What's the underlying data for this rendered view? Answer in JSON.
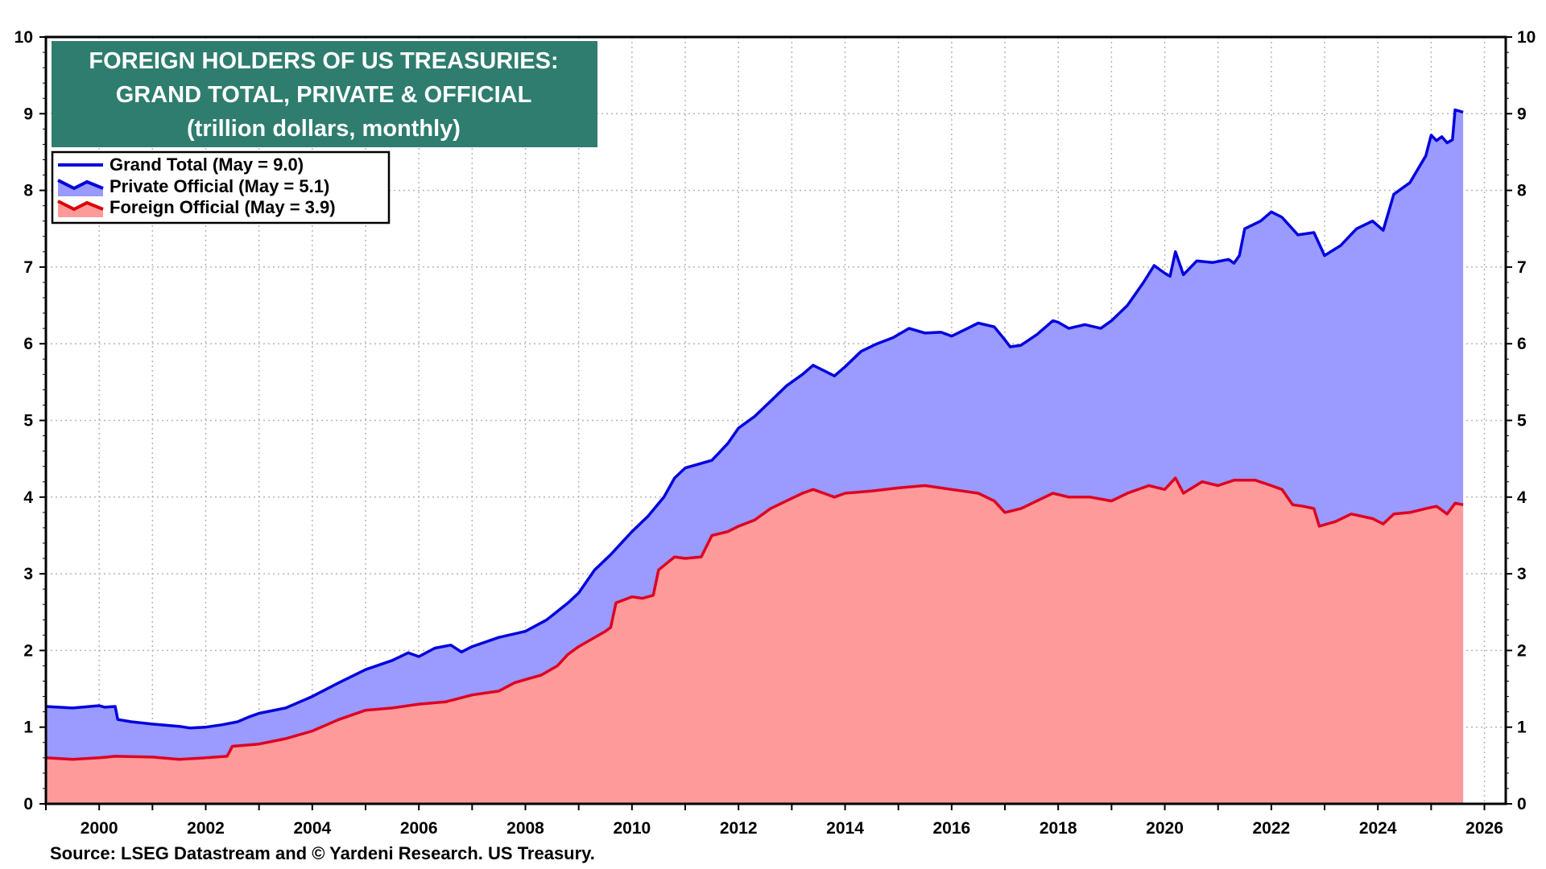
{
  "chart_data": {
    "type": "area",
    "title_lines": [
      "FOREIGN HOLDERS OF US TREASURIES:",
      "GRAND TOTAL, PRIVATE & OFFICIAL",
      "(trillion dollars, monthly)"
    ],
    "source": "Source: LSEG Datastream and © Yardeni Research. US Treasury.",
    "x_ticks": [
      "2000",
      "2002",
      "2004",
      "2006",
      "2008",
      "2010",
      "2012",
      "2014",
      "2016",
      "2018",
      "2020",
      "2022",
      "2024",
      "2026"
    ],
    "y_ticks": [
      "0",
      "1",
      "2",
      "3",
      "4",
      "5",
      "6",
      "7",
      "8",
      "9",
      "10"
    ],
    "xlim": [
      1999.0,
      2026.4
    ],
    "ylim": [
      0,
      10
    ],
    "grid": true,
    "legend_position": "top-left",
    "legend": [
      {
        "label": "Grand Total (May = 9.0)",
        "style": "line",
        "color": "#0000dd"
      },
      {
        "label": "Private Official (May = 5.1)",
        "style": "area",
        "color": "#9a9aff",
        "edge": "#0000dd"
      },
      {
        "label": "Foreign Official (May = 3.9)",
        "style": "area",
        "color": "#ff9a9a",
        "edge": "#dd0000"
      }
    ],
    "colors": {
      "title_bg": "#2e7d6e",
      "total": "#0000dd",
      "private_fill": "#9a9aff",
      "official_line": "#dd0022",
      "official_fill": "#ff9a9a"
    },
    "series": [
      {
        "name": "Grand Total (May = 9.0)",
        "points": [
          [
            1999.0,
            1.27
          ],
          [
            1999.5,
            1.25
          ],
          [
            2000.0,
            1.28
          ],
          [
            2000.1,
            1.26
          ],
          [
            2000.3,
            1.27
          ],
          [
            2000.35,
            1.1
          ],
          [
            2000.6,
            1.07
          ],
          [
            2001.0,
            1.04
          ],
          [
            2001.5,
            1.01
          ],
          [
            2001.7,
            0.99
          ],
          [
            2002.0,
            1.0
          ],
          [
            2002.3,
            1.03
          ],
          [
            2002.6,
            1.07
          ],
          [
            2002.8,
            1.13
          ],
          [
            2003.0,
            1.18
          ],
          [
            2003.5,
            1.25
          ],
          [
            2004.0,
            1.4
          ],
          [
            2004.5,
            1.58
          ],
          [
            2005.0,
            1.75
          ],
          [
            2005.5,
            1.87
          ],
          [
            2005.8,
            1.97
          ],
          [
            2006.0,
            1.92
          ],
          [
            2006.3,
            2.03
          ],
          [
            2006.6,
            2.07
          ],
          [
            2006.8,
            1.98
          ],
          [
            2007.0,
            2.05
          ],
          [
            2007.5,
            2.17
          ],
          [
            2008.0,
            2.25
          ],
          [
            2008.4,
            2.4
          ],
          [
            2008.8,
            2.62
          ],
          [
            2009.0,
            2.75
          ],
          [
            2009.3,
            3.05
          ],
          [
            2009.6,
            3.25
          ],
          [
            2010.0,
            3.55
          ],
          [
            2010.3,
            3.75
          ],
          [
            2010.6,
            4.0
          ],
          [
            2010.8,
            4.25
          ],
          [
            2011.0,
            4.38
          ],
          [
            2011.5,
            4.48
          ],
          [
            2011.8,
            4.7
          ],
          [
            2012.0,
            4.9
          ],
          [
            2012.3,
            5.05
          ],
          [
            2012.6,
            5.25
          ],
          [
            2012.9,
            5.45
          ],
          [
            2013.2,
            5.6
          ],
          [
            2013.4,
            5.72
          ],
          [
            2013.6,
            5.65
          ],
          [
            2013.8,
            5.58
          ],
          [
            2014.0,
            5.7
          ],
          [
            2014.3,
            5.9
          ],
          [
            2014.6,
            6.0
          ],
          [
            2014.9,
            6.08
          ],
          [
            2015.2,
            6.2
          ],
          [
            2015.5,
            6.14
          ],
          [
            2015.8,
            6.15
          ],
          [
            2016.0,
            6.1
          ],
          [
            2016.3,
            6.2
          ],
          [
            2016.5,
            6.27
          ],
          [
            2016.8,
            6.22
          ],
          [
            2017.0,
            6.05
          ],
          [
            2017.1,
            5.96
          ],
          [
            2017.3,
            5.98
          ],
          [
            2017.6,
            6.12
          ],
          [
            2017.9,
            6.3
          ],
          [
            2018.0,
            6.28
          ],
          [
            2018.2,
            6.2
          ],
          [
            2018.5,
            6.25
          ],
          [
            2018.8,
            6.2
          ],
          [
            2019.0,
            6.3
          ],
          [
            2019.3,
            6.5
          ],
          [
            2019.6,
            6.8
          ],
          [
            2019.8,
            7.02
          ],
          [
            2020.0,
            6.92
          ],
          [
            2020.1,
            6.88
          ],
          [
            2020.2,
            7.2
          ],
          [
            2020.35,
            6.9
          ],
          [
            2020.6,
            7.08
          ],
          [
            2020.9,
            7.06
          ],
          [
            2021.2,
            7.1
          ],
          [
            2021.3,
            7.05
          ],
          [
            2021.4,
            7.15
          ],
          [
            2021.5,
            7.5
          ],
          [
            2021.8,
            7.6
          ],
          [
            2022.0,
            7.72
          ],
          [
            2022.2,
            7.65
          ],
          [
            2022.5,
            7.42
          ],
          [
            2022.8,
            7.45
          ],
          [
            2023.0,
            7.15
          ],
          [
            2023.3,
            7.28
          ],
          [
            2023.6,
            7.5
          ],
          [
            2023.9,
            7.6
          ],
          [
            2024.1,
            7.48
          ],
          [
            2024.3,
            7.95
          ],
          [
            2024.6,
            8.1
          ],
          [
            2024.9,
            8.45
          ],
          [
            2025.0,
            8.72
          ],
          [
            2025.1,
            8.65
          ],
          [
            2025.2,
            8.7
          ],
          [
            2025.3,
            8.62
          ],
          [
            2025.4,
            8.66
          ],
          [
            2025.45,
            9.05
          ],
          [
            2025.6,
            9.02
          ]
        ]
      },
      {
        "name": "Foreign Official (May = 3.9)",
        "points": [
          [
            1999.0,
            0.6
          ],
          [
            1999.5,
            0.58
          ],
          [
            2000.0,
            0.6
          ],
          [
            2000.3,
            0.62
          ],
          [
            2001.0,
            0.61
          ],
          [
            2001.5,
            0.58
          ],
          [
            2002.0,
            0.6
          ],
          [
            2002.4,
            0.62
          ],
          [
            2002.5,
            0.75
          ],
          [
            2003.0,
            0.78
          ],
          [
            2003.5,
            0.85
          ],
          [
            2004.0,
            0.95
          ],
          [
            2004.5,
            1.1
          ],
          [
            2005.0,
            1.22
          ],
          [
            2005.5,
            1.25
          ],
          [
            2006.0,
            1.3
          ],
          [
            2006.5,
            1.33
          ],
          [
            2007.0,
            1.42
          ],
          [
            2007.5,
            1.47
          ],
          [
            2007.8,
            1.58
          ],
          [
            2008.0,
            1.62
          ],
          [
            2008.3,
            1.68
          ],
          [
            2008.6,
            1.8
          ],
          [
            2008.8,
            1.95
          ],
          [
            2009.0,
            2.05
          ],
          [
            2009.5,
            2.25
          ],
          [
            2009.6,
            2.3
          ],
          [
            2009.7,
            2.62
          ],
          [
            2010.0,
            2.7
          ],
          [
            2010.2,
            2.68
          ],
          [
            2010.4,
            2.72
          ],
          [
            2010.5,
            3.05
          ],
          [
            2010.8,
            3.22
          ],
          [
            2011.0,
            3.2
          ],
          [
            2011.3,
            3.22
          ],
          [
            2011.5,
            3.5
          ],
          [
            2011.8,
            3.55
          ],
          [
            2012.0,
            3.62
          ],
          [
            2012.3,
            3.7
          ],
          [
            2012.6,
            3.85
          ],
          [
            2012.9,
            3.95
          ],
          [
            2013.2,
            4.05
          ],
          [
            2013.4,
            4.1
          ],
          [
            2013.6,
            4.05
          ],
          [
            2013.8,
            4.0
          ],
          [
            2014.0,
            4.05
          ],
          [
            2014.5,
            4.08
          ],
          [
            2015.0,
            4.12
          ],
          [
            2015.5,
            4.15
          ],
          [
            2016.0,
            4.1
          ],
          [
            2016.5,
            4.05
          ],
          [
            2016.8,
            3.95
          ],
          [
            2017.0,
            3.8
          ],
          [
            2017.3,
            3.85
          ],
          [
            2017.6,
            3.95
          ],
          [
            2017.9,
            4.05
          ],
          [
            2018.2,
            4.0
          ],
          [
            2018.6,
            4.0
          ],
          [
            2019.0,
            3.95
          ],
          [
            2019.3,
            4.05
          ],
          [
            2019.7,
            4.15
          ],
          [
            2020.0,
            4.1
          ],
          [
            2020.2,
            4.25
          ],
          [
            2020.35,
            4.05
          ],
          [
            2020.7,
            4.2
          ],
          [
            2021.0,
            4.15
          ],
          [
            2021.3,
            4.22
          ],
          [
            2021.7,
            4.22
          ],
          [
            2022.0,
            4.15
          ],
          [
            2022.2,
            4.1
          ],
          [
            2022.4,
            3.9
          ],
          [
            2022.6,
            3.88
          ],
          [
            2022.8,
            3.85
          ],
          [
            2022.9,
            3.62
          ],
          [
            2023.2,
            3.68
          ],
          [
            2023.5,
            3.78
          ],
          [
            2023.9,
            3.72
          ],
          [
            2024.1,
            3.65
          ],
          [
            2024.3,
            3.78
          ],
          [
            2024.6,
            3.8
          ],
          [
            2024.9,
            3.85
          ],
          [
            2025.1,
            3.88
          ],
          [
            2025.3,
            3.78
          ],
          [
            2025.45,
            3.92
          ],
          [
            2025.6,
            3.9
          ]
        ]
      }
    ]
  }
}
